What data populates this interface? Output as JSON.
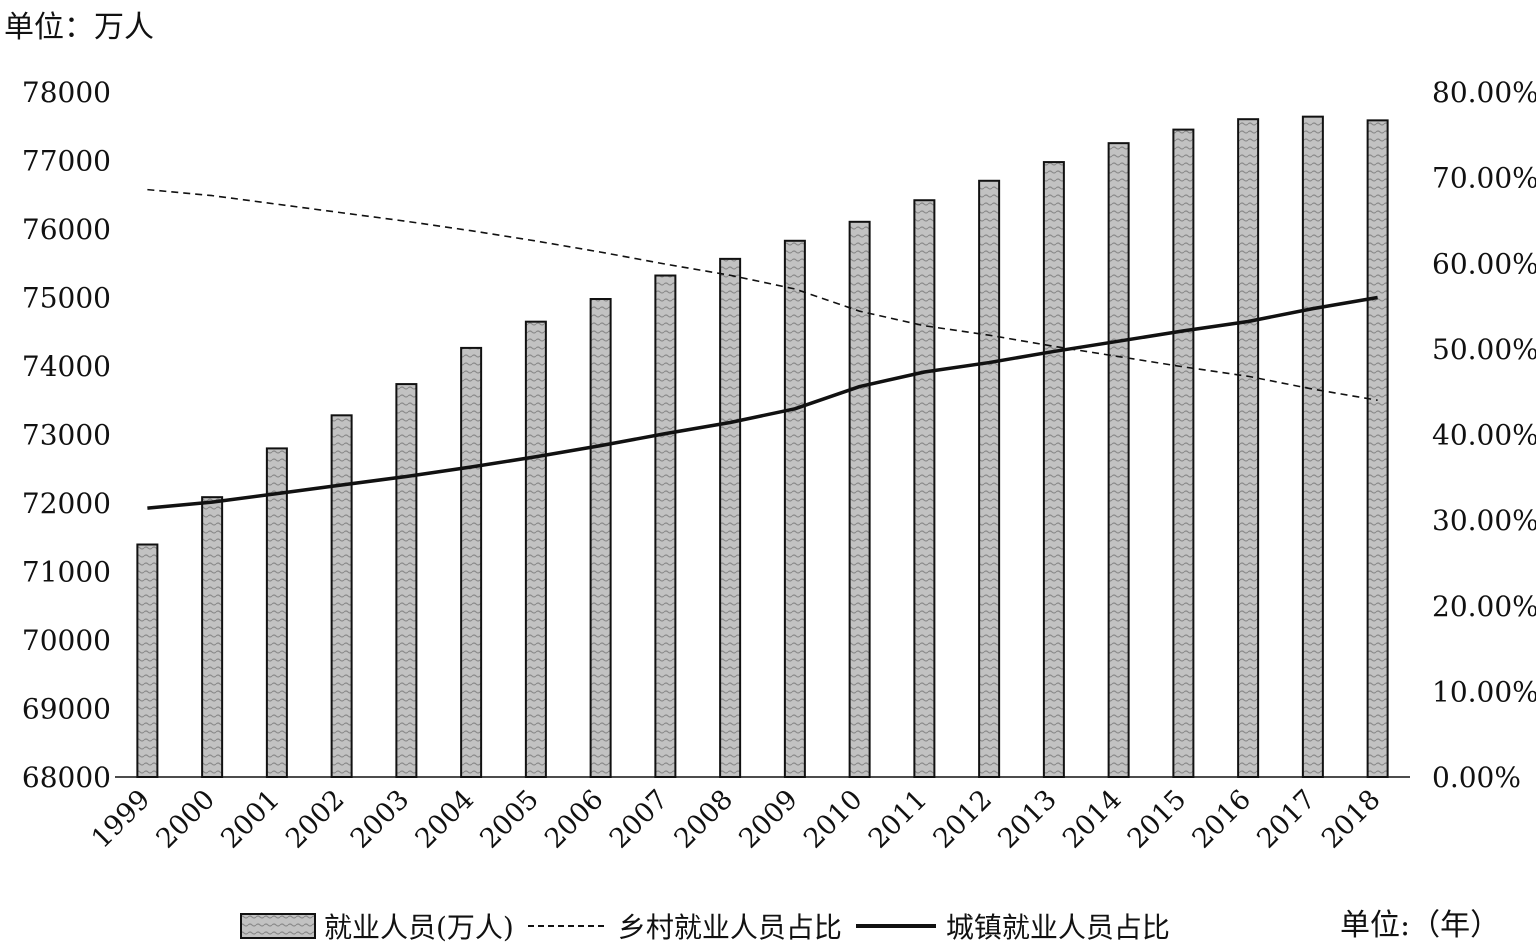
{
  "unit_left": "单位：万人",
  "unit_right": "单位:（年）",
  "chart_data": {
    "type": "bar",
    "categories": [
      "1999",
      "2000",
      "2001",
      "2002",
      "2003",
      "2004",
      "2005",
      "2006",
      "2007",
      "2008",
      "2009",
      "2010",
      "2011",
      "2012",
      "2013",
      "2014",
      "2015",
      "2016",
      "2017",
      "2018"
    ],
    "y_left": {
      "min": 68000,
      "max": 78000,
      "ticks": [
        "78000",
        "77000",
        "76000",
        "75000",
        "74000",
        "73000",
        "72000",
        "71000",
        "70000",
        "69000",
        "68000"
      ],
      "tick_values": [
        78000,
        77000,
        76000,
        75000,
        74000,
        73000,
        72000,
        71000,
        70000,
        69000,
        68000
      ]
    },
    "y_right": {
      "min": 0,
      "max": 80,
      "ticks": [
        "80.00%",
        "70.00%",
        "60.00%",
        "50.00%",
        "40.00%",
        "30.00%",
        "20.00%",
        "10.00%",
        "0.00%"
      ],
      "tick_values": [
        80,
        70,
        60,
        50,
        40,
        30,
        20,
        10,
        0
      ]
    },
    "series": [
      {
        "name": "就业人员(万人)",
        "type": "bar",
        "axis": "left",
        "values": [
          71394,
          72085,
          72797,
          73280,
          73736,
          74264,
          74647,
          74978,
          75321,
          75564,
          75828,
          76105,
          76420,
          76704,
          76977,
          77253,
          77451,
          77603,
          77640,
          77586
        ]
      },
      {
        "name": "乡村就业人员占比",
        "type": "line",
        "style": "dashed",
        "axis": "right",
        "values": [
          68.6,
          67.9,
          66.9,
          65.9,
          64.9,
          63.8,
          62.6,
          61.3,
          59.9,
          58.6,
          57.0,
          54.4,
          52.7,
          51.6,
          50.3,
          49.1,
          47.9,
          46.8,
          45.3,
          44.0
        ]
      },
      {
        "name": "城镇就业人员占比",
        "type": "line",
        "style": "solid",
        "axis": "right",
        "values": [
          31.4,
          32.1,
          33.1,
          34.1,
          35.1,
          36.2,
          37.4,
          38.7,
          40.1,
          41.4,
          43.0,
          45.6,
          47.3,
          48.4,
          49.7,
          50.9,
          52.1,
          53.2,
          54.7,
          56.0
        ]
      }
    ],
    "legend_position": "bottom",
    "grid": false,
    "colors": {
      "bar_fill": "#bdbdbd",
      "bar_stroke": "#111111",
      "line": "#111111"
    }
  }
}
